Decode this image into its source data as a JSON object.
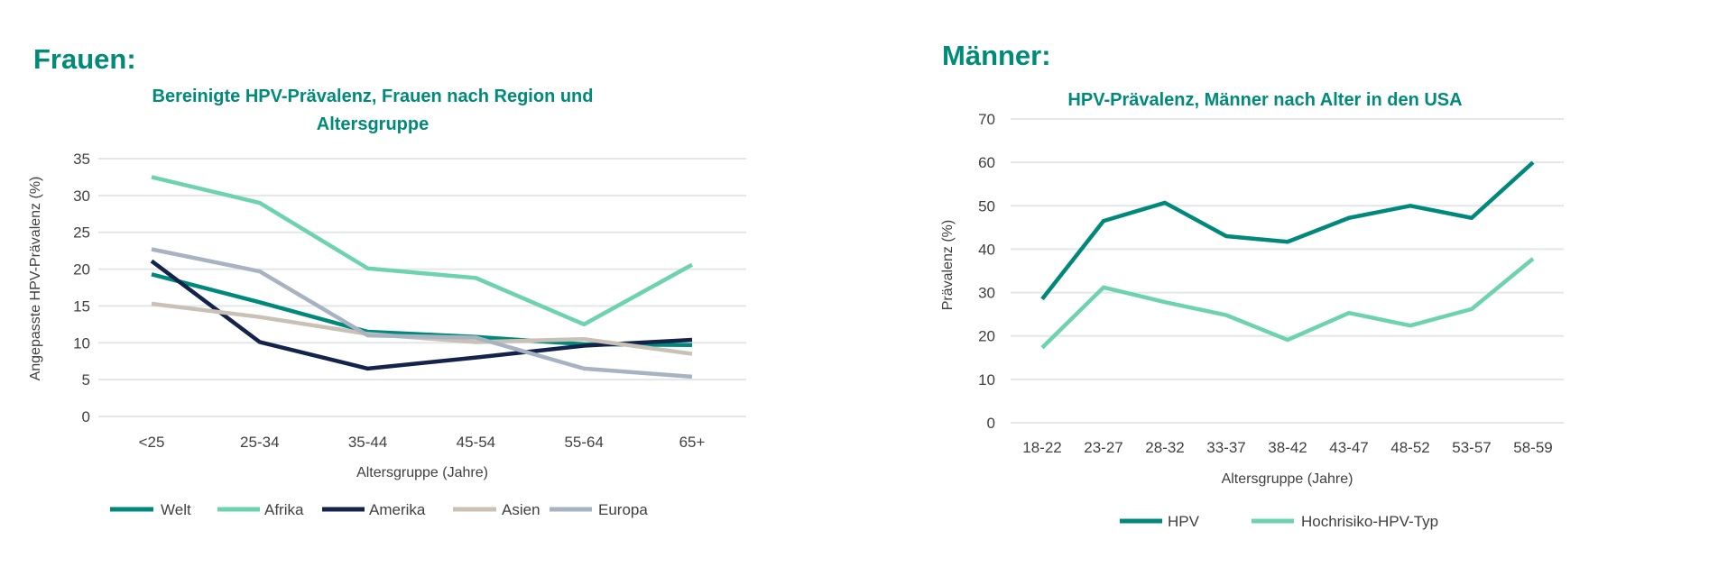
{
  "chart_data": [
    {
      "type": "line",
      "heading": "Frauen:",
      "title_lines": [
        "Bereinigte HPV-Prävalenz, Frauen nach Region und",
        "Altersgruppe"
      ],
      "xlabel": "Altersgruppe (Jahre)",
      "ylabel": "Angepasste HPV-Prävalenz (%)",
      "ylim": [
        0,
        35
      ],
      "yticks": [
        "0",
        "5",
        "10",
        "15",
        "20",
        "25",
        "30",
        "35"
      ],
      "grid": true,
      "legend": "bottom",
      "categories": [
        "<25",
        "25-34",
        "35-44",
        "45-54",
        "55-64",
        "65+"
      ],
      "series": [
        {
          "name": "Welt",
          "color": "#00897a",
          "values": [
            19.3,
            15.5,
            11.5,
            10.8,
            9.8,
            9.7
          ]
        },
        {
          "name": "Afrika",
          "color": "#6dd3ae",
          "values": [
            32.5,
            29.0,
            20.1,
            18.8,
            12.5,
            20.6
          ]
        },
        {
          "name": "Amerika",
          "color": "#14234a",
          "values": [
            21.1,
            10.1,
            6.5,
            8.0,
            9.6,
            10.4
          ]
        },
        {
          "name": "Asien",
          "color": "#c9c0b6",
          "values": [
            15.3,
            13.5,
            11.2,
            10.1,
            10.5,
            8.5
          ]
        },
        {
          "name": "Europa",
          "color": "#a8b3c1",
          "values": [
            22.7,
            19.7,
            11.0,
            10.7,
            6.5,
            5.4
          ]
        }
      ]
    },
    {
      "type": "line",
      "heading": "Männer:",
      "title_lines": [
        "HPV-Prävalenz, Männer nach Alter in den USA"
      ],
      "xlabel": "Altersgruppe (Jahre)",
      "ylabel": "Prävalenz (%)",
      "ylim": [
        0,
        70
      ],
      "yticks": [
        "0",
        "10",
        "20",
        "30",
        "40",
        "50",
        "60",
        "70"
      ],
      "grid": true,
      "legend": "bottom",
      "categories": [
        "18-22",
        "23-27",
        "28-32",
        "33-37",
        "38-42",
        "43-47",
        "48-52",
        "53-57",
        "58-59"
      ],
      "series": [
        {
          "name": "HPV",
          "color": "#00897a",
          "values": [
            28.5,
            46.5,
            50.7,
            43.0,
            41.7,
            47.2,
            50.0,
            47.2,
            60.0
          ]
        },
        {
          "name": "Hochrisiko-HPV-Typ",
          "color": "#6dd3ae",
          "values": [
            17.3,
            31.2,
            27.8,
            24.8,
            19.1,
            25.3,
            22.4,
            26.2,
            37.8
          ]
        }
      ]
    }
  ]
}
